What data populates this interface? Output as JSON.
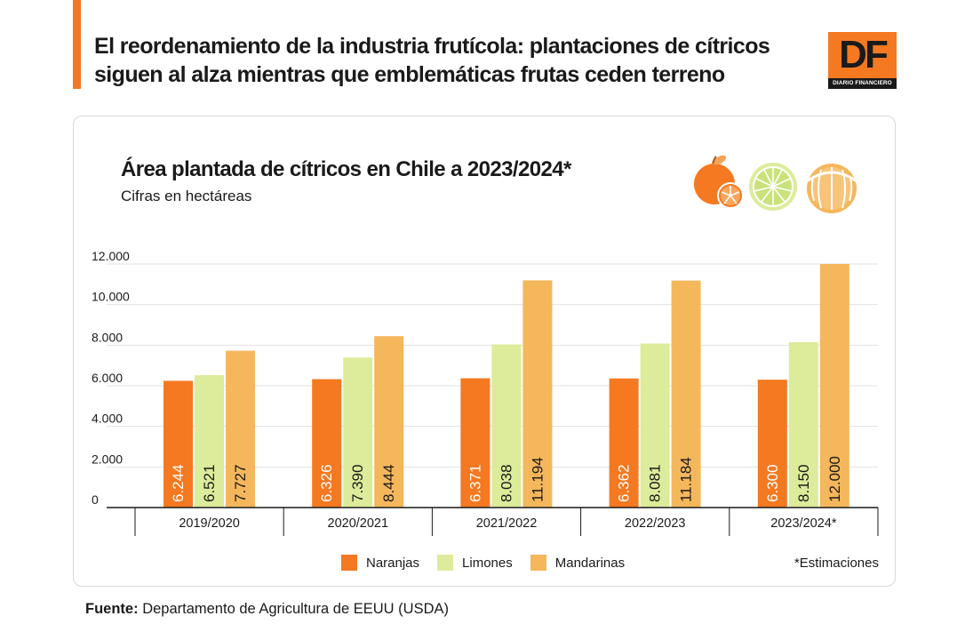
{
  "headline": "El reordenamiento de la industria frutícola: plantaciones de cítricos siguen al alza mientras que emblemáticas frutas ceden terreno",
  "logo": {
    "mark": "DF",
    "subtitle": "DIARIO FINANCIERO"
  },
  "colors": {
    "accent": "#f47920",
    "naranjas": "#f47920",
    "limones": "#dcec9b",
    "mandarinas": "#f5b75c",
    "grid": "#e2e2e2",
    "axis": "#1a1a1a"
  },
  "icons": [
    "orange-icon",
    "lime-icon",
    "mandarin-icon"
  ],
  "chart_data": {
    "type": "bar",
    "title": "Área plantada de cítricos en Chile a 2023/2024*",
    "subtitle": "Cifras en hectáreas",
    "categories": [
      "2019/2020",
      "2020/2021",
      "2021/2022",
      "2022/2023",
      "2023/2024*"
    ],
    "series": [
      {
        "name": "Naranjas",
        "color": "#f47920",
        "values": [
          6244,
          6326,
          6371,
          6362,
          6300
        ],
        "labels": [
          "6.244",
          "6.326",
          "6.371",
          "6.362",
          "6.300"
        ]
      },
      {
        "name": "Limones",
        "color": "#dcec9b",
        "values": [
          6521,
          7390,
          8038,
          8081,
          8150
        ],
        "labels": [
          "6.521",
          "7.390",
          "8.038",
          "8.081",
          "8.150"
        ]
      },
      {
        "name": "Mandarinas",
        "color": "#f5b75c",
        "values": [
          7727,
          8444,
          11194,
          11184,
          12000
        ],
        "labels": [
          "7.727",
          "8.444",
          "11.194",
          "11.184",
          "12.000"
        ]
      }
    ],
    "yticks": [
      0,
      2000,
      4000,
      6000,
      8000,
      10000,
      12000
    ],
    "ytick_labels": [
      "0",
      "2.000",
      "4.000",
      "6.000",
      "8.000",
      "10.000",
      "12.000"
    ],
    "ylim": [
      0,
      12000
    ],
    "grid": true,
    "legend_position": "bottom",
    "note": "*Estimaciones"
  },
  "source": {
    "label": "Fuente:",
    "text": "Departamento de Agricultura de EEUU (USDA)"
  }
}
